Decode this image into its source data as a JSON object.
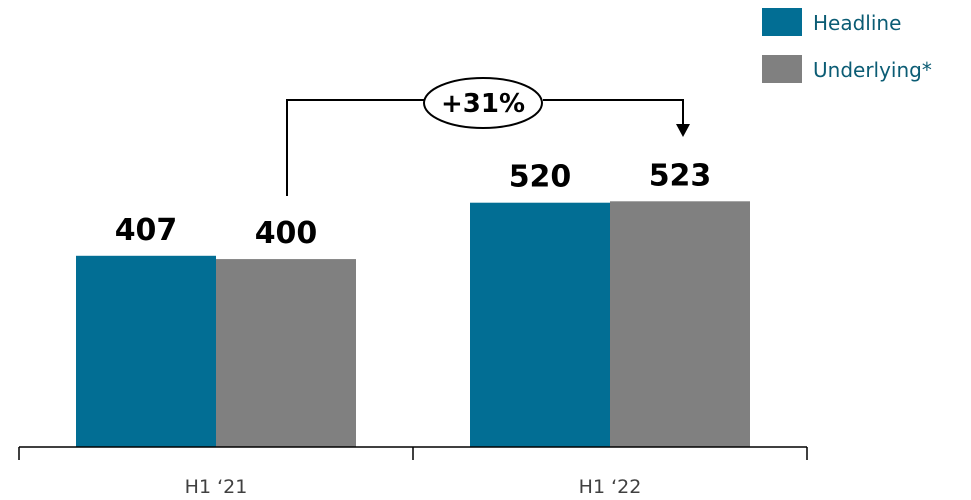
{
  "chart_data": {
    "type": "bar",
    "categories": [
      "H1 ‘21",
      "H1 ‘22"
    ],
    "series": [
      {
        "name": "Headline",
        "values": [
          407,
          520
        ],
        "color": "#026e94"
      },
      {
        "name": "Underlying*",
        "values": [
          400,
          523
        ],
        "color": "#808080"
      }
    ],
    "value_labels": [
      "407",
      "400",
      "520",
      "523"
    ],
    "annotation": {
      "text": "+31%",
      "from": "Underlying* H1 ‘21",
      "to": "Underlying* H1 ‘22"
    },
    "ylim": [
      0,
      600
    ],
    "grid": false,
    "legend_position": "top-right",
    "legend_text_color": "#0b5c74"
  }
}
